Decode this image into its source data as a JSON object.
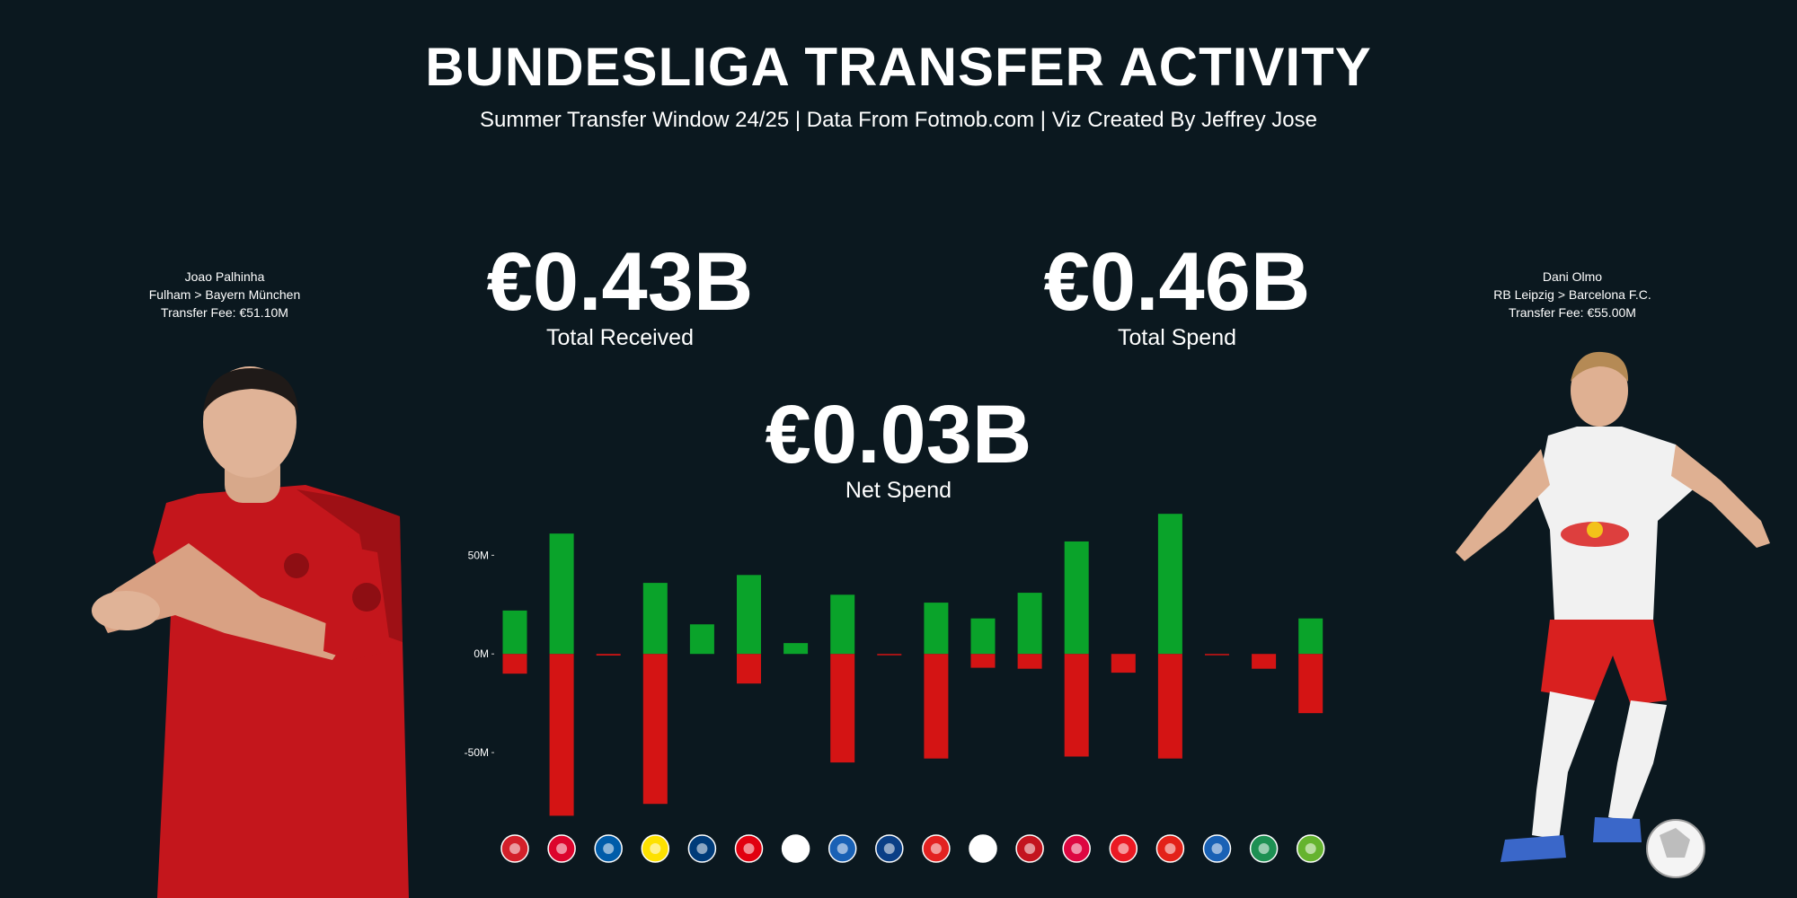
{
  "header": {
    "title": "BUNDESLIGA TRANSFER ACTIVITY",
    "subtitle": "Summer Transfer Window 24/25 | Data From Fotmob.com | Viz Created By Jeffrey Jose"
  },
  "stats": {
    "received": {
      "value": "€0.43B",
      "label": "Total Received"
    },
    "spend": {
      "value": "€0.46B",
      "label": "Total Spend"
    },
    "net": {
      "value": "€0.03B",
      "label": "Net Spend"
    }
  },
  "players": {
    "left": {
      "name": "Joao Palhinha",
      "move": "Fulham > Bayern München",
      "fee": "Transfer Fee: €51.10M"
    },
    "right": {
      "name": "Dani Olmo",
      "move": "RB Leipzig > Barcelona F.C.",
      "fee": "Transfer Fee: €55.00M"
    }
  },
  "colors": {
    "background": "#0b181f",
    "received": "#0aa32a",
    "spend": "#d41414",
    "text": "#ffffff"
  },
  "chart_data": {
    "type": "bar",
    "ylim": [
      -85,
      72
    ],
    "yticks": [
      50,
      0,
      -50
    ],
    "ytick_labels": [
      "50M",
      "0M",
      "-50M"
    ],
    "grid": false,
    "categories": [
      "augsburg-logo",
      "bayern-munchen-logo",
      "bochum-logo",
      "dortmund-logo",
      "heidenheim-logo",
      "frankfurt-logo",
      "freiburg-logo",
      "hoffenheim-logo",
      "holstein-kiel-logo",
      "leverkusen-logo",
      "gladbach-logo",
      "mainz-logo",
      "rb-leipzig-logo",
      "union-berlin-logo",
      "stuttgart-logo",
      "st-pauli-logo",
      "werder-bremen-logo",
      "wolfsburg-logo"
    ],
    "series": [
      {
        "values": [
          22,
          61,
          0,
          36,
          15,
          40,
          5.5,
          30,
          0,
          26,
          18,
          31,
          57,
          0,
          71,
          0,
          0,
          18
        ]
      },
      {
        "values": [
          -10,
          -82,
          -0.8,
          -76,
          0,
          -15,
          0,
          -55,
          -0.5,
          -53,
          -7,
          -7.5,
          -52,
          -9.5,
          -53,
          -0.5,
          -7.5,
          -30
        ]
      }
    ]
  }
}
